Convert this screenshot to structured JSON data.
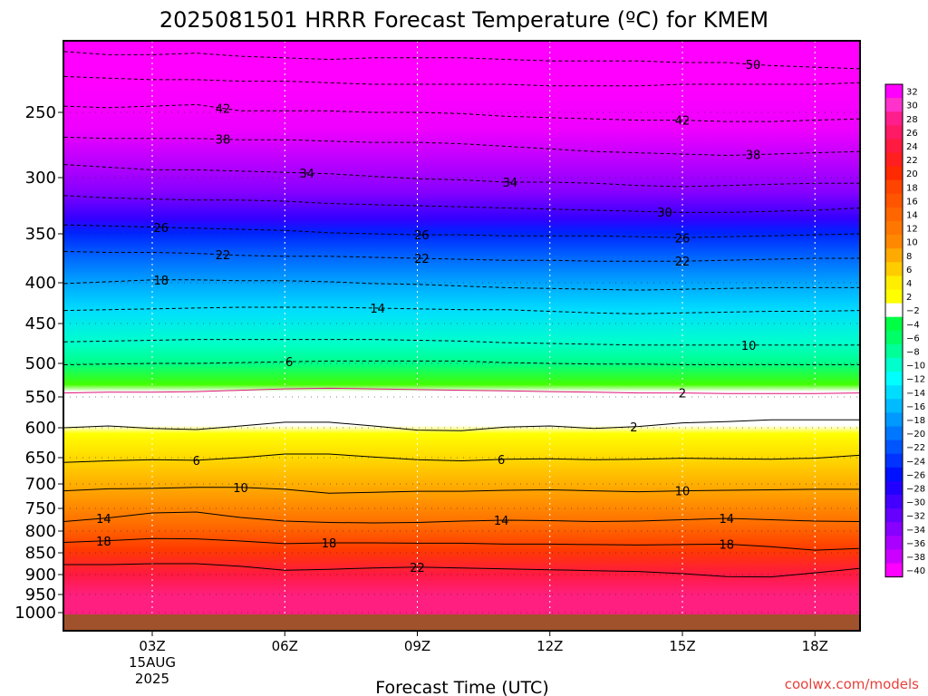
{
  "chart_data": {
    "type": "heatmap",
    "title": "2025081501 HRRR Forecast Temperature (ºC) for KMEM",
    "xlabel": "Forecast Time (UTC)",
    "ylabel": "",
    "x_ticks": [
      "03Z",
      "06Z",
      "09Z",
      "12Z",
      "15Z",
      "18Z"
    ],
    "x_tick_date": [
      "15AUG",
      "2025"
    ],
    "x_hours": [
      0,
      1,
      2,
      3,
      4,
      5,
      6,
      7,
      8,
      9,
      10,
      11,
      12,
      13,
      14,
      15,
      16,
      17,
      18,
      19
    ],
    "xlim": [
      1,
      19
    ],
    "y_ticks": [
      250,
      300,
      350,
      400,
      450,
      500,
      550,
      600,
      650,
      700,
      750,
      800,
      850,
      900,
      950,
      1000
    ],
    "ylim": [
      1000,
      200
    ],
    "surface_pressure": 1005,
    "colorbar_labels": [
      "32",
      "30",
      "28",
      "26",
      "24",
      "22",
      "20",
      "18",
      "16",
      "14",
      "12",
      "10",
      "8",
      "6",
      "4",
      "2",
      "-2",
      "-4",
      "-6",
      "-8",
      "-10",
      "-12",
      "-14",
      "-16",
      "-18",
      "-20",
      "-22",
      "-24",
      "-26",
      "-28",
      "-30",
      "-32",
      "-34",
      "-36",
      "-38",
      "-40"
    ],
    "colorbar_colors": [
      "#ff00ff",
      "#ff33cc",
      "#ff1f8c",
      "#ff1a66",
      "#ff1a40",
      "#ff1f1f",
      "#ff2a00",
      "#ff4400",
      "#ff5500",
      "#ff6600",
      "#ff7700",
      "#ff8800",
      "#ffaa00",
      "#ffcc00",
      "#ffee00",
      "#ffff00",
      "#ffffff",
      "#00ff44",
      "#00ff66",
      "#00ff99",
      "#00ffcc",
      "#00ffff",
      "#00ddff",
      "#00bbff",
      "#0099ff",
      "#0077ff",
      "#0055ff",
      "#0033ff",
      "#0011ff",
      "#2200ff",
      "#4400ff",
      "#6600ff",
      "#8800ff",
      "#aa00ff",
      "#cc00ff",
      "#ff00ff"
    ],
    "contours": [
      {
        "value": -50,
        "label": "50",
        "pressure": [
          209,
          211,
          213,
          213,
          212,
          214,
          215,
          216,
          215,
          215,
          215,
          216,
          217,
          217,
          217,
          218,
          218,
          220,
          221,
          222
        ]
      },
      {
        "value": -46,
        "label": "",
        "pressure": [
          226,
          227,
          228,
          229,
          229,
          230,
          230,
          231,
          232,
          232,
          232,
          232,
          233,
          233,
          233,
          232,
          232,
          232,
          232,
          231
        ]
      },
      {
        "value": -42,
        "label": "42",
        "pressure": [
          245,
          246,
          247,
          246,
          245,
          249,
          249,
          249,
          250,
          250,
          251,
          253,
          254,
          255,
          256,
          256,
          257,
          257,
          256,
          255
        ]
      },
      {
        "value": -38,
        "label": "38",
        "pressure": [
          268,
          269,
          270,
          270,
          270,
          271,
          271,
          272,
          273,
          273,
          274,
          276,
          278,
          280,
          281,
          282,
          283,
          282,
          281,
          280
        ]
      },
      {
        "value": -34,
        "label": "34",
        "pressure": [
          289,
          290,
          292,
          294,
          294,
          295,
          296,
          297,
          299,
          301,
          302,
          304,
          304,
          305,
          307,
          308,
          307,
          306,
          305,
          305
        ]
      },
      {
        "value": -30,
        "label": "30",
        "pressure": [
          314,
          316,
          318,
          319,
          320,
          320,
          321,
          323,
          324,
          325,
          326,
          327,
          328,
          329,
          330,
          331,
          331,
          330,
          329,
          327
        ]
      },
      {
        "value": -26,
        "label": "26",
        "pressure": [
          341,
          342,
          343,
          344,
          345,
          346,
          347,
          349,
          350,
          351,
          351,
          352,
          352,
          352,
          353,
          354,
          353,
          352,
          351,
          350
        ]
      },
      {
        "value": -22,
        "label": "22",
        "pressure": [
          367,
          368,
          369,
          369,
          370,
          372,
          373,
          373,
          374,
          375,
          376,
          377,
          377,
          378,
          378,
          378,
          377,
          376,
          375,
          375
        ]
      },
      {
        "value": -18,
        "label": "18",
        "pressure": [
          401,
          401,
          399,
          397,
          397,
          398,
          398,
          399,
          401,
          402,
          404,
          406,
          407,
          408,
          409,
          408,
          407,
          406,
          406,
          406
        ]
      },
      {
        "value": -14,
        "label": "14",
        "pressure": [
          434,
          434,
          433,
          432,
          431,
          430,
          430,
          430,
          431,
          432,
          433,
          433,
          435,
          437,
          438,
          437,
          436,
          435,
          435,
          434
        ]
      },
      {
        "value": -10,
        "label": "10",
        "pressure": [
          474,
          473,
          472,
          471,
          470,
          470,
          470,
          470,
          470,
          471,
          472,
          474,
          475,
          476,
          477,
          477,
          477,
          477,
          477,
          477
        ]
      },
      {
        "value": -6,
        "label": "6",
        "pressure": [
          502,
          502,
          501,
          500,
          500,
          499,
          498,
          497,
          497,
          497,
          497,
          499,
          500,
          501,
          501,
          502,
          502,
          502,
          502,
          502
        ]
      },
      {
        "value": -2,
        "label": "2",
        "pressure": [
          545,
          544,
          543,
          543,
          542,
          540,
          538,
          537,
          538,
          539,
          540,
          541,
          542,
          543,
          544,
          544,
          545,
          545,
          545,
          544
        ]
      },
      {
        "value": 2,
        "label": "2",
        "pressure": [
          600,
          600,
          597,
          601,
          603,
          597,
          591,
          591,
          597,
          604,
          605,
          599,
          597,
          601,
          598,
          592,
          590,
          587,
          587,
          587
        ]
      },
      {
        "value": 6,
        "label": "6",
        "pressure": [
          658,
          659,
          656,
          654,
          655,
          650,
          644,
          644,
          649,
          654,
          656,
          653,
          652,
          654,
          653,
          651,
          652,
          653,
          651,
          646
        ]
      },
      {
        "value": 10,
        "label": "10",
        "pressure": [
          707,
          714,
          710,
          709,
          707,
          707,
          711,
          719,
          717,
          715,
          715,
          713,
          712,
          714,
          716,
          714,
          713,
          712,
          711,
          711
        ]
      },
      {
        "value": 14,
        "label": "14",
        "pressure": [
          775,
          779,
          771,
          760,
          758,
          770,
          778,
          781,
          782,
          781,
          778,
          776,
          777,
          779,
          778,
          775,
          772,
          775,
          778,
          779
        ]
      },
      {
        "value": 18,
        "label": "18",
        "pressure": [
          821,
          826,
          822,
          817,
          818,
          823,
          829,
          827,
          827,
          828,
          828,
          830,
          830,
          831,
          832,
          831,
          830,
          836,
          844,
          840
        ]
      },
      {
        "value": 22,
        "label": "22",
        "pressure": [
          864,
          877,
          877,
          875,
          875,
          881,
          890,
          888,
          885,
          883,
          885,
          887,
          889,
          891,
          893,
          898,
          905,
          906,
          896,
          886
        ]
      }
    ],
    "contour_label_positions": [
      {
        "index": 0,
        "hour": 16.6
      },
      {
        "index": 2,
        "hour": 4.6
      },
      {
        "index": 2,
        "hour": 15.0
      },
      {
        "index": 3,
        "hour": 4.6
      },
      {
        "index": 3,
        "hour": 16.6
      },
      {
        "index": 4,
        "hour": 6.5
      },
      {
        "index": 4,
        "hour": 11.1
      },
      {
        "index": 5,
        "hour": 14.6
      },
      {
        "index": 6,
        "hour": 3.2
      },
      {
        "index": 6,
        "hour": 9.1
      },
      {
        "index": 6,
        "hour": 15.0
      },
      {
        "index": 7,
        "hour": 4.6
      },
      {
        "index": 7,
        "hour": 9.1
      },
      {
        "index": 7,
        "hour": 15.0
      },
      {
        "index": 8,
        "hour": 3.2
      },
      {
        "index": 9,
        "hour": 8.1
      },
      {
        "index": 10,
        "hour": 16.5
      },
      {
        "index": 11,
        "hour": 6.1
      },
      {
        "index": 12,
        "hour": 15.0
      },
      {
        "index": 13,
        "hour": 13.9
      },
      {
        "index": 14,
        "hour": 4.0
      },
      {
        "index": 14,
        "hour": 10.9
      },
      {
        "index": 15,
        "hour": 5.0
      },
      {
        "index": 15,
        "hour": 15.0
      },
      {
        "index": 16,
        "hour": 1.9
      },
      {
        "index": 16,
        "hour": 10.9
      },
      {
        "index": 16,
        "hour": 16.0
      },
      {
        "index": 17,
        "hour": 1.9
      },
      {
        "index": 17,
        "hour": 7.0
      },
      {
        "index": 17,
        "hour": 16.0
      },
      {
        "index": 18,
        "hour": 9.0
      }
    ],
    "grid": true,
    "legend": "right"
  },
  "credit": "coolwx.com/models"
}
